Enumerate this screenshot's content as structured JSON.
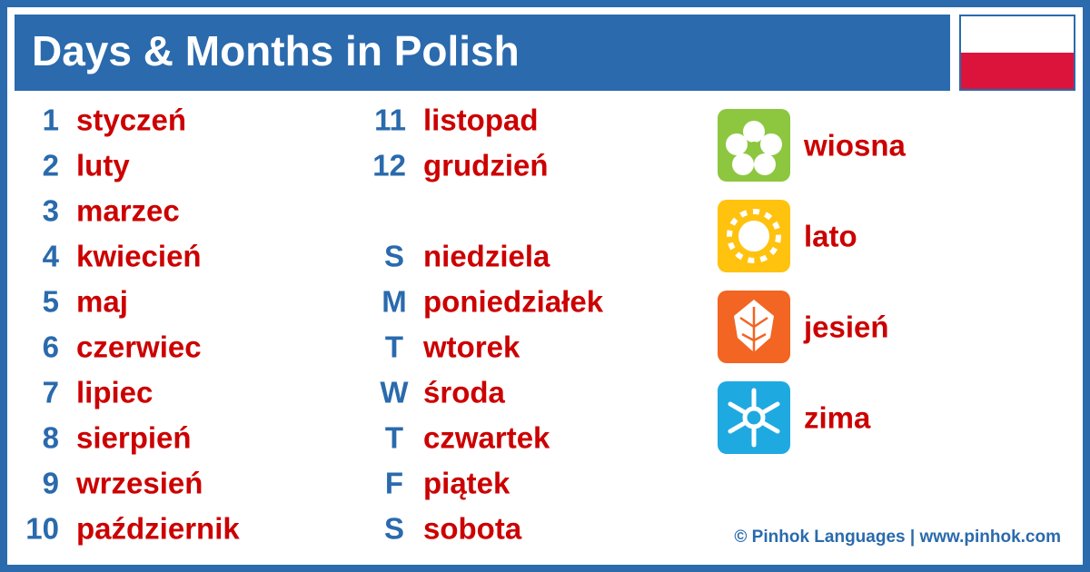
{
  "header": {
    "title": "Days & Months in Polish"
  },
  "months": [
    {
      "number": "1",
      "name": "styczeń"
    },
    {
      "number": "2",
      "name": "luty"
    },
    {
      "number": "3",
      "name": "marzec"
    },
    {
      "number": "4",
      "name": "kwiecień"
    },
    {
      "number": "5",
      "name": "maj"
    },
    {
      "number": "6",
      "name": "czerwiec"
    },
    {
      "number": "7",
      "name": "lipiec"
    },
    {
      "number": "8",
      "name": "sierpień"
    },
    {
      "number": "9",
      "name": "wrzesień"
    },
    {
      "number": "10",
      "name": "październik"
    },
    {
      "number": "11",
      "name": "listopad"
    },
    {
      "number": "12",
      "name": "grudzień"
    }
  ],
  "days": [
    {
      "letter": "S",
      "name": "niedziela"
    },
    {
      "letter": "M",
      "name": "poniedziałek"
    },
    {
      "letter": "T",
      "name": "wtorek"
    },
    {
      "letter": "W",
      "name": "środa"
    },
    {
      "letter": "T",
      "name": "czwartek"
    },
    {
      "letter": "F",
      "name": "piątek"
    },
    {
      "letter": "S",
      "name": "sobota"
    }
  ],
  "seasons": [
    "wiosna",
    "lato",
    "jesień",
    "zima"
  ],
  "footer": {
    "credit": "© Pinhok Languages | www.pinhok.com"
  }
}
